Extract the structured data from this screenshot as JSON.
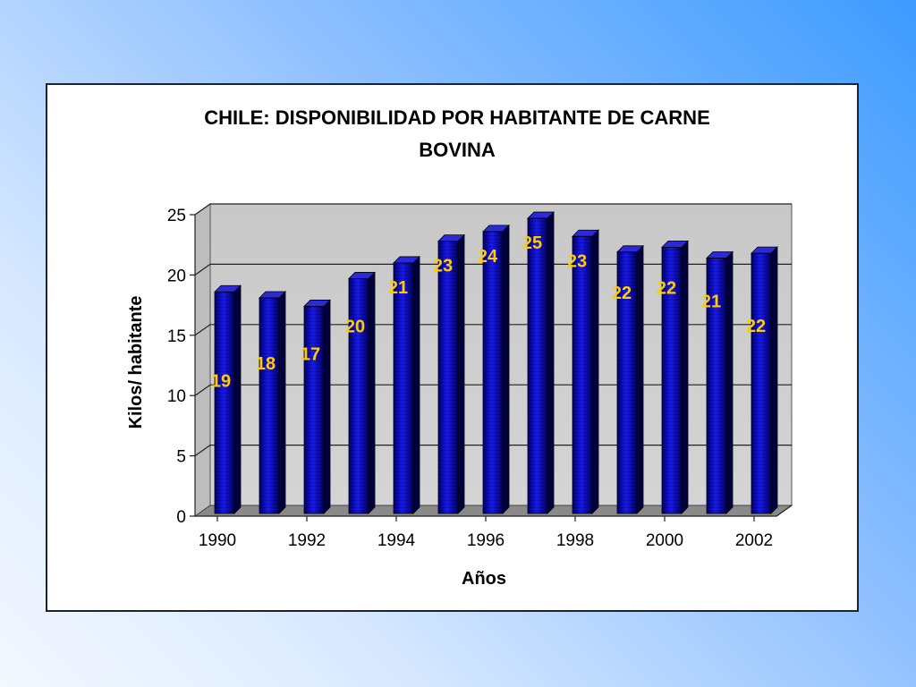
{
  "chart_data": {
    "type": "bar",
    "title_line1": "CHILE: DISPONIBILIDAD POR HABITANTE DE CARNE",
    "title_line2": "BOVINA",
    "xlabel": "Años",
    "ylabel": "Kilos/ habitante",
    "ylim": [
      0,
      25
    ],
    "y_ticks": [
      "0",
      "5",
      "10",
      "15",
      "20",
      "25"
    ],
    "x_tick_labels": [
      "1990",
      "1992",
      "1994",
      "1996",
      "1998",
      "2000",
      "2002"
    ],
    "categories": [
      "1990",
      "1991",
      "1992",
      "1993",
      "1994",
      "1995",
      "1996",
      "1997",
      "1998",
      "1999",
      "2000",
      "2001",
      "2002"
    ],
    "values": [
      18.6,
      18.1,
      17.4,
      19.7,
      21.0,
      22.8,
      23.6,
      24.7,
      23.2,
      21.9,
      22.3,
      21.4,
      21.8
    ],
    "data_labels": [
      "19",
      "18",
      "17",
      "20",
      "21",
      "23",
      "24",
      "25",
      "23",
      "22",
      "22",
      "21",
      "22"
    ],
    "grid": true,
    "bar_color": "#1010c8",
    "label_color": "#ffcc00"
  }
}
